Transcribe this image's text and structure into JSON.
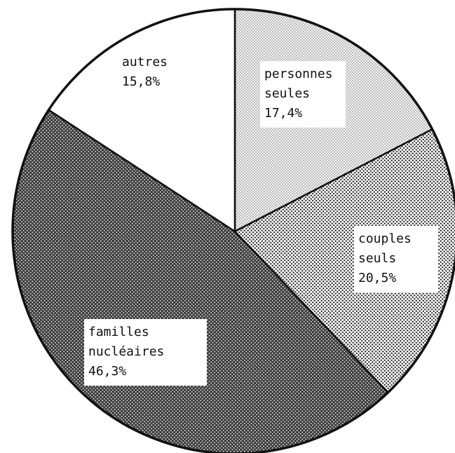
{
  "chart_data": {
    "type": "pie",
    "slices": [
      {
        "label": "personnes seules",
        "label_lines": [
          "personnes",
          "seules"
        ],
        "value": 17.4,
        "value_label": "17,4%",
        "pattern": "light"
      },
      {
        "label": "couples seuls",
        "label_lines": [
          "couples",
          "seuls"
        ],
        "value": 20.5,
        "value_label": "20,5%",
        "pattern": "medium"
      },
      {
        "label": "familles nucléaires",
        "label_lines": [
          "familles",
          "nucléaires"
        ],
        "value": 46.3,
        "value_label": "46,3%",
        "pattern": "dark"
      },
      {
        "label": "autres",
        "label_lines": [
          "autres"
        ],
        "value": 15.8,
        "value_label": "15,8%",
        "pattern": "none"
      }
    ],
    "start": "12 o'clock",
    "direction": "clockwise",
    "title": "",
    "legend": "none"
  }
}
